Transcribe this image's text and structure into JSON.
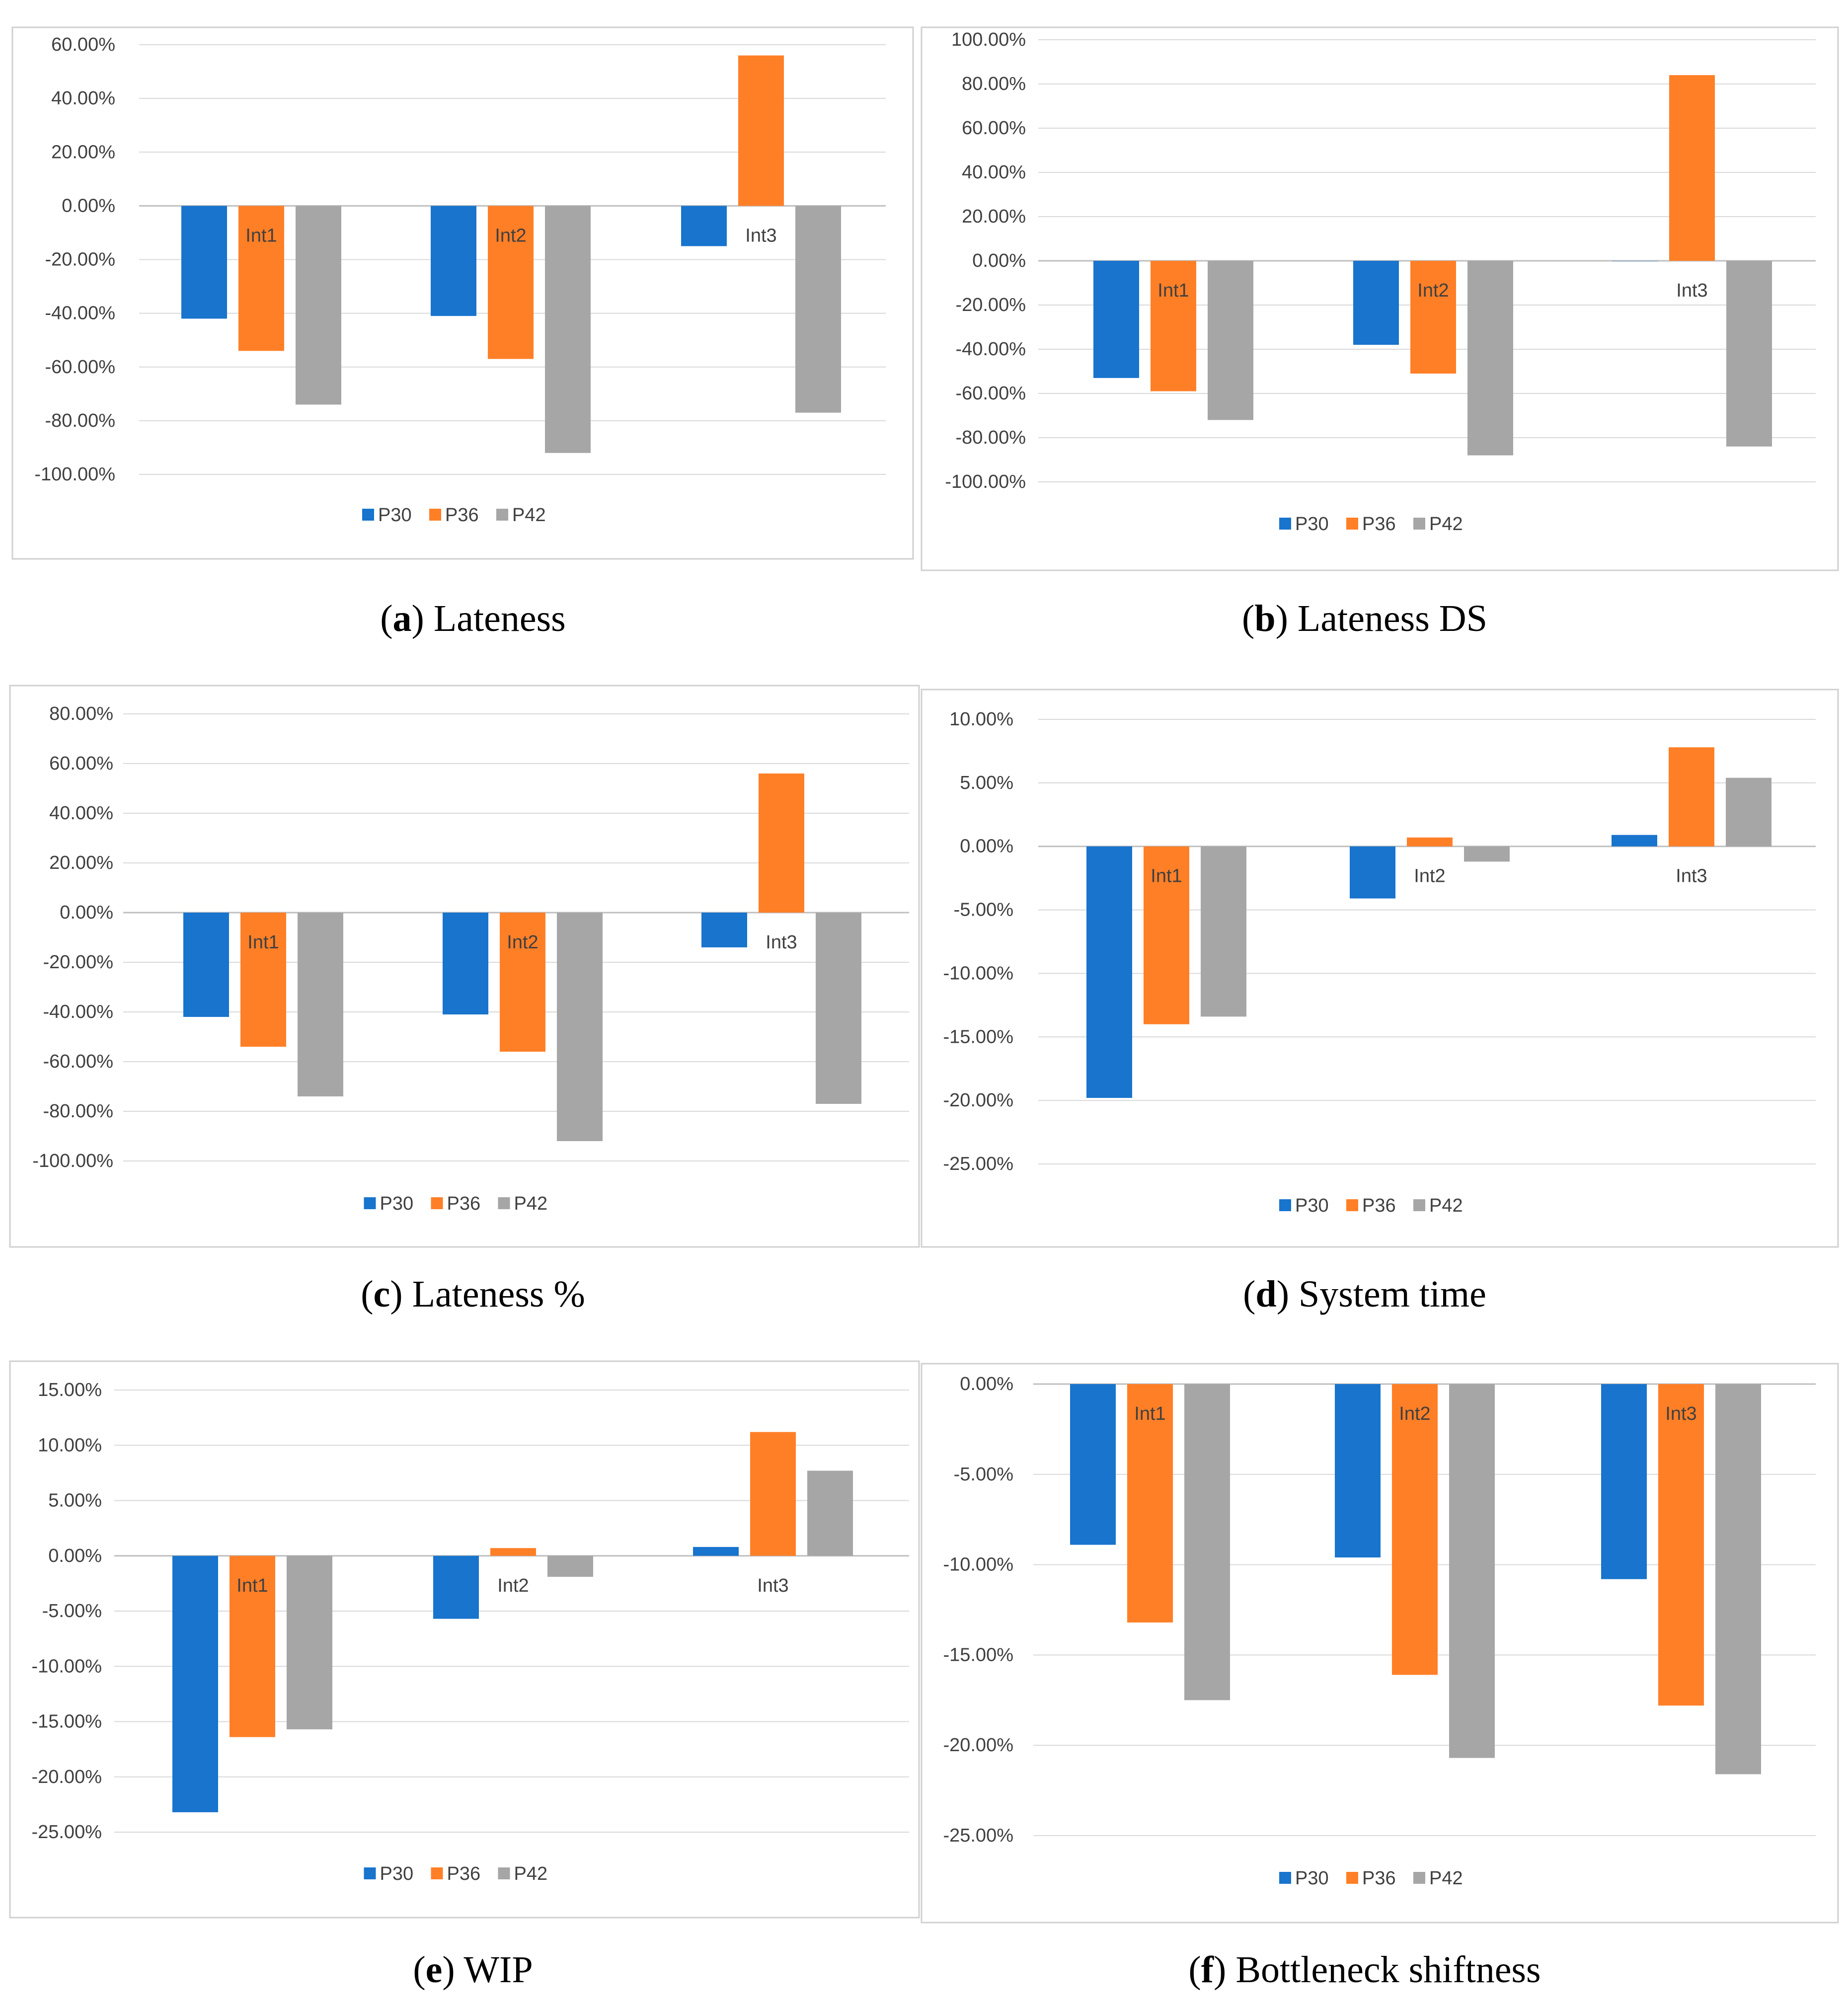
{
  "colors": {
    "P30": "#1874CD",
    "P36": "#FF7F27",
    "P42": "#A6A6A6",
    "grid": "#D9D9D9",
    "axis": "#BFBFBF",
    "tick_text": "#404040",
    "caption_text": "#000000"
  },
  "chart_data": [
    {
      "id": "a",
      "type": "bar",
      "caption_letter": "a",
      "caption_text": "Lateness",
      "categories": [
        "Int1",
        "Int2",
        "Int3"
      ],
      "series": [
        {
          "name": "P30",
          "values": [
            -42,
            -41,
            -15
          ]
        },
        {
          "name": "P36",
          "values": [
            -54,
            -57,
            56
          ]
        },
        {
          "name": "P42",
          "values": [
            -74,
            -92,
            -77
          ]
        }
      ],
      "ylim": [
        -100,
        60
      ],
      "yticks": [
        60,
        40,
        20,
        0,
        -20,
        -40,
        -60,
        -80,
        -100
      ],
      "tick_labels": [
        "60.00%",
        "40.00%",
        "20.00%",
        "0.00%",
        "-20.00%",
        "-40.00%",
        "-60.00%",
        "-80.00%",
        "-100.00%"
      ],
      "legend": "bottom-center"
    },
    {
      "id": "b",
      "type": "bar",
      "caption_letter": "b",
      "caption_text": "Lateness DS",
      "categories": [
        "Int1",
        "Int2",
        "Int3"
      ],
      "series": [
        {
          "name": "P30",
          "values": [
            -53,
            -38,
            0
          ]
        },
        {
          "name": "P36",
          "values": [
            -59,
            -51,
            84
          ]
        },
        {
          "name": "P42",
          "values": [
            -72,
            -88,
            -84
          ]
        }
      ],
      "ylim": [
        -100,
        100
      ],
      "yticks": [
        100,
        80,
        60,
        40,
        20,
        0,
        -20,
        -40,
        -60,
        -80,
        -100
      ],
      "tick_labels": [
        "100.00%",
        "80.00%",
        "60.00%",
        "40.00%",
        "20.00%",
        "0.00%",
        "-20.00%",
        "-40.00%",
        "-60.00%",
        "-80.00%",
        "-100.00%"
      ],
      "legend": "bottom-center"
    },
    {
      "id": "c",
      "type": "bar",
      "caption_letter": "c",
      "caption_text": "Lateness %",
      "categories": [
        "Int1",
        "Int2",
        "Int3"
      ],
      "series": [
        {
          "name": "P30",
          "values": [
            -42,
            -41,
            -14
          ]
        },
        {
          "name": "P36",
          "values": [
            -54,
            -56,
            56
          ]
        },
        {
          "name": "P42",
          "values": [
            -74,
            -92,
            -77
          ]
        }
      ],
      "ylim": [
        -100,
        80
      ],
      "yticks": [
        80,
        60,
        40,
        20,
        0,
        -20,
        -40,
        -60,
        -80,
        -100
      ],
      "tick_labels": [
        "80.00%",
        "60.00%",
        "40.00%",
        "20.00%",
        "0.00%",
        "-20.00%",
        "-40.00%",
        "-60.00%",
        "-80.00%",
        "-100.00%"
      ],
      "legend": "bottom-center"
    },
    {
      "id": "d",
      "type": "bar",
      "caption_letter": "d",
      "caption_text": "System time",
      "categories": [
        "Int1",
        "Int2",
        "Int3"
      ],
      "series": [
        {
          "name": "P30",
          "values": [
            -19.8,
            -4.1,
            0.9
          ]
        },
        {
          "name": "P36",
          "values": [
            -14.0,
            0.7,
            7.8
          ]
        },
        {
          "name": "P42",
          "values": [
            -13.4,
            -1.2,
            5.4
          ]
        }
      ],
      "ylim": [
        -25,
        10
      ],
      "yticks": [
        10,
        5,
        0,
        -5,
        -10,
        -15,
        -20,
        -25
      ],
      "tick_labels": [
        "10.00%",
        "5.00%",
        "0.00%",
        "-5.00%",
        "-10.00%",
        "-15.00%",
        "-20.00%",
        "-25.00%"
      ],
      "legend": "bottom-center"
    },
    {
      "id": "e",
      "type": "bar",
      "caption_letter": "e",
      "caption_text": "WIP",
      "categories": [
        "Int1",
        "Int2",
        "Int3"
      ],
      "series": [
        {
          "name": "P30",
          "values": [
            -23.2,
            -5.7,
            0.8
          ]
        },
        {
          "name": "P36",
          "values": [
            -16.4,
            0.7,
            11.2
          ]
        },
        {
          "name": "P42",
          "values": [
            -15.7,
            -1.9,
            7.7
          ]
        }
      ],
      "ylim": [
        -25,
        15
      ],
      "yticks": [
        15,
        10,
        5,
        0,
        -5,
        -10,
        -15,
        -20,
        -25
      ],
      "tick_labels": [
        "15.00%",
        "10.00%",
        "5.00%",
        "0.00%",
        "-5.00%",
        "-10.00%",
        "-15.00%",
        "-20.00%",
        "-25.00%"
      ],
      "legend": "bottom-center"
    },
    {
      "id": "f",
      "type": "bar",
      "caption_letter": "f",
      "caption_text": "Bottleneck shiftness",
      "categories": [
        "Int1",
        "Int2",
        "Int3"
      ],
      "series": [
        {
          "name": "P30",
          "values": [
            -8.9,
            -9.6,
            -10.8
          ]
        },
        {
          "name": "P36",
          "values": [
            -13.2,
            -16.1,
            -17.8
          ]
        },
        {
          "name": "P42",
          "values": [
            -17.5,
            -20.7,
            -21.6
          ]
        }
      ],
      "ylim": [
        -25,
        0
      ],
      "yticks": [
        0,
        -5,
        -10,
        -15,
        -20,
        -25
      ],
      "tick_labels": [
        "0.00%",
        "-5.00%",
        "-10.00%",
        "-15.00%",
        "-20.00%",
        "-25.00%"
      ],
      "legend": "bottom-center"
    }
  ]
}
